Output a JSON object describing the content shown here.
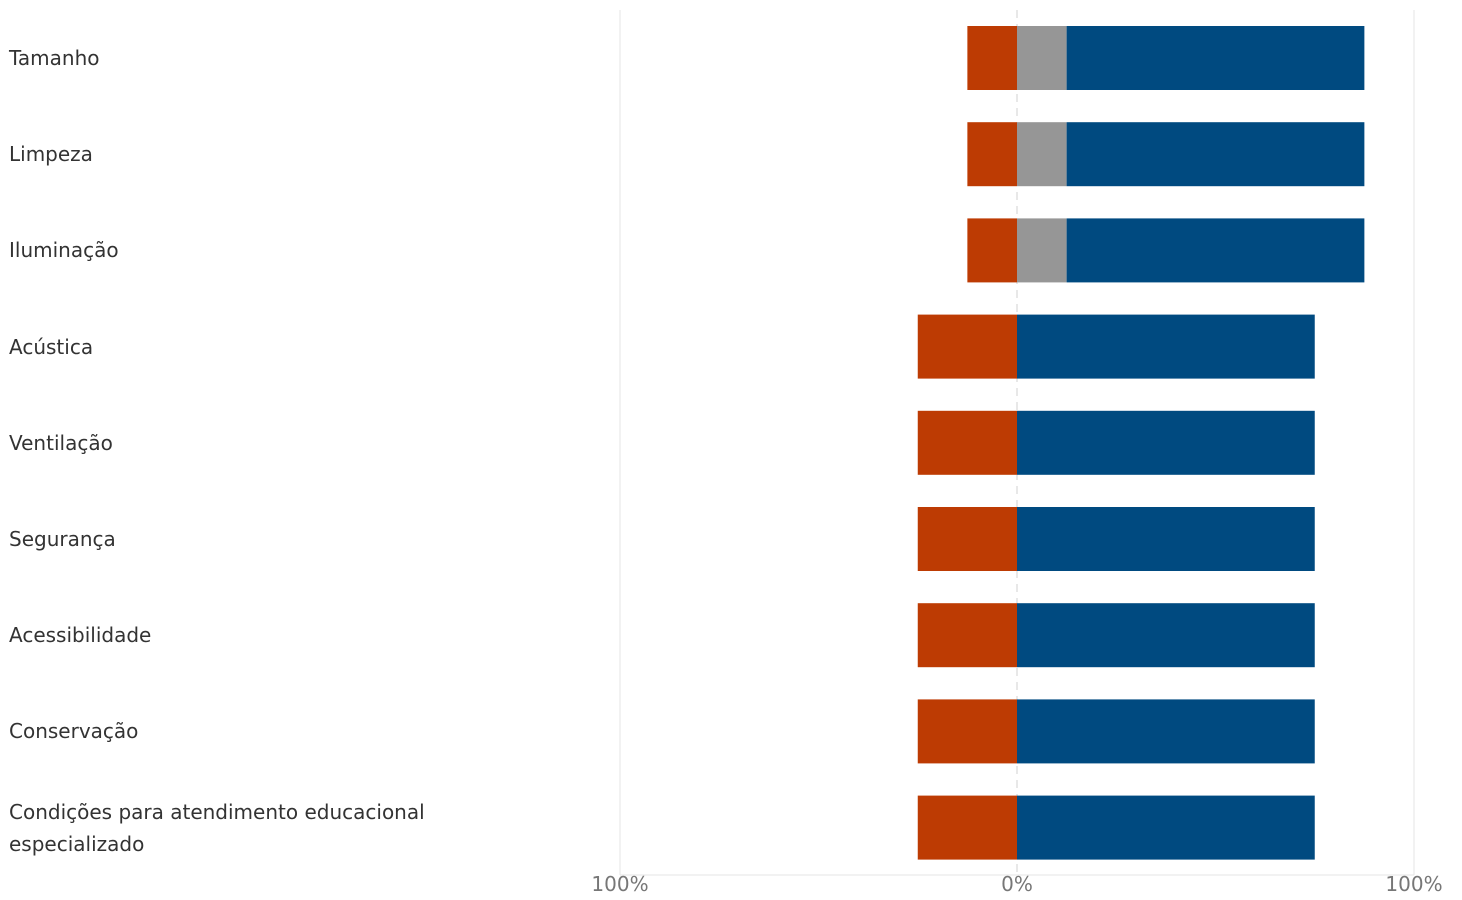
{
  "chart_data": {
    "type": "bar",
    "orientation": "horizontal",
    "stacked": "diverging",
    "categories": [
      "Tamanho",
      "Limpeza",
      "Iluminação",
      "Acústica",
      "Ventilação",
      "Segurança",
      "Acessibilidade",
      "Conservação",
      "Condições para atendimento educacional especializado"
    ],
    "series": [
      {
        "color": "#BD3B03",
        "values": [
          -12.5,
          -12.5,
          -12.5,
          -25,
          -25,
          -25,
          -25,
          -25,
          -25
        ]
      },
      {
        "color": "#969696",
        "values": [
          12.5,
          12.5,
          12.5,
          0,
          0,
          0,
          0,
          0,
          0
        ]
      },
      {
        "color": "#004A80",
        "values": [
          75,
          75,
          75,
          75,
          75,
          75,
          75,
          75,
          75
        ]
      }
    ],
    "xlim": [
      -100,
      100
    ],
    "x_ticks": [
      "100%",
      "0%",
      "100%"
    ],
    "grid": true,
    "legend": "none"
  }
}
